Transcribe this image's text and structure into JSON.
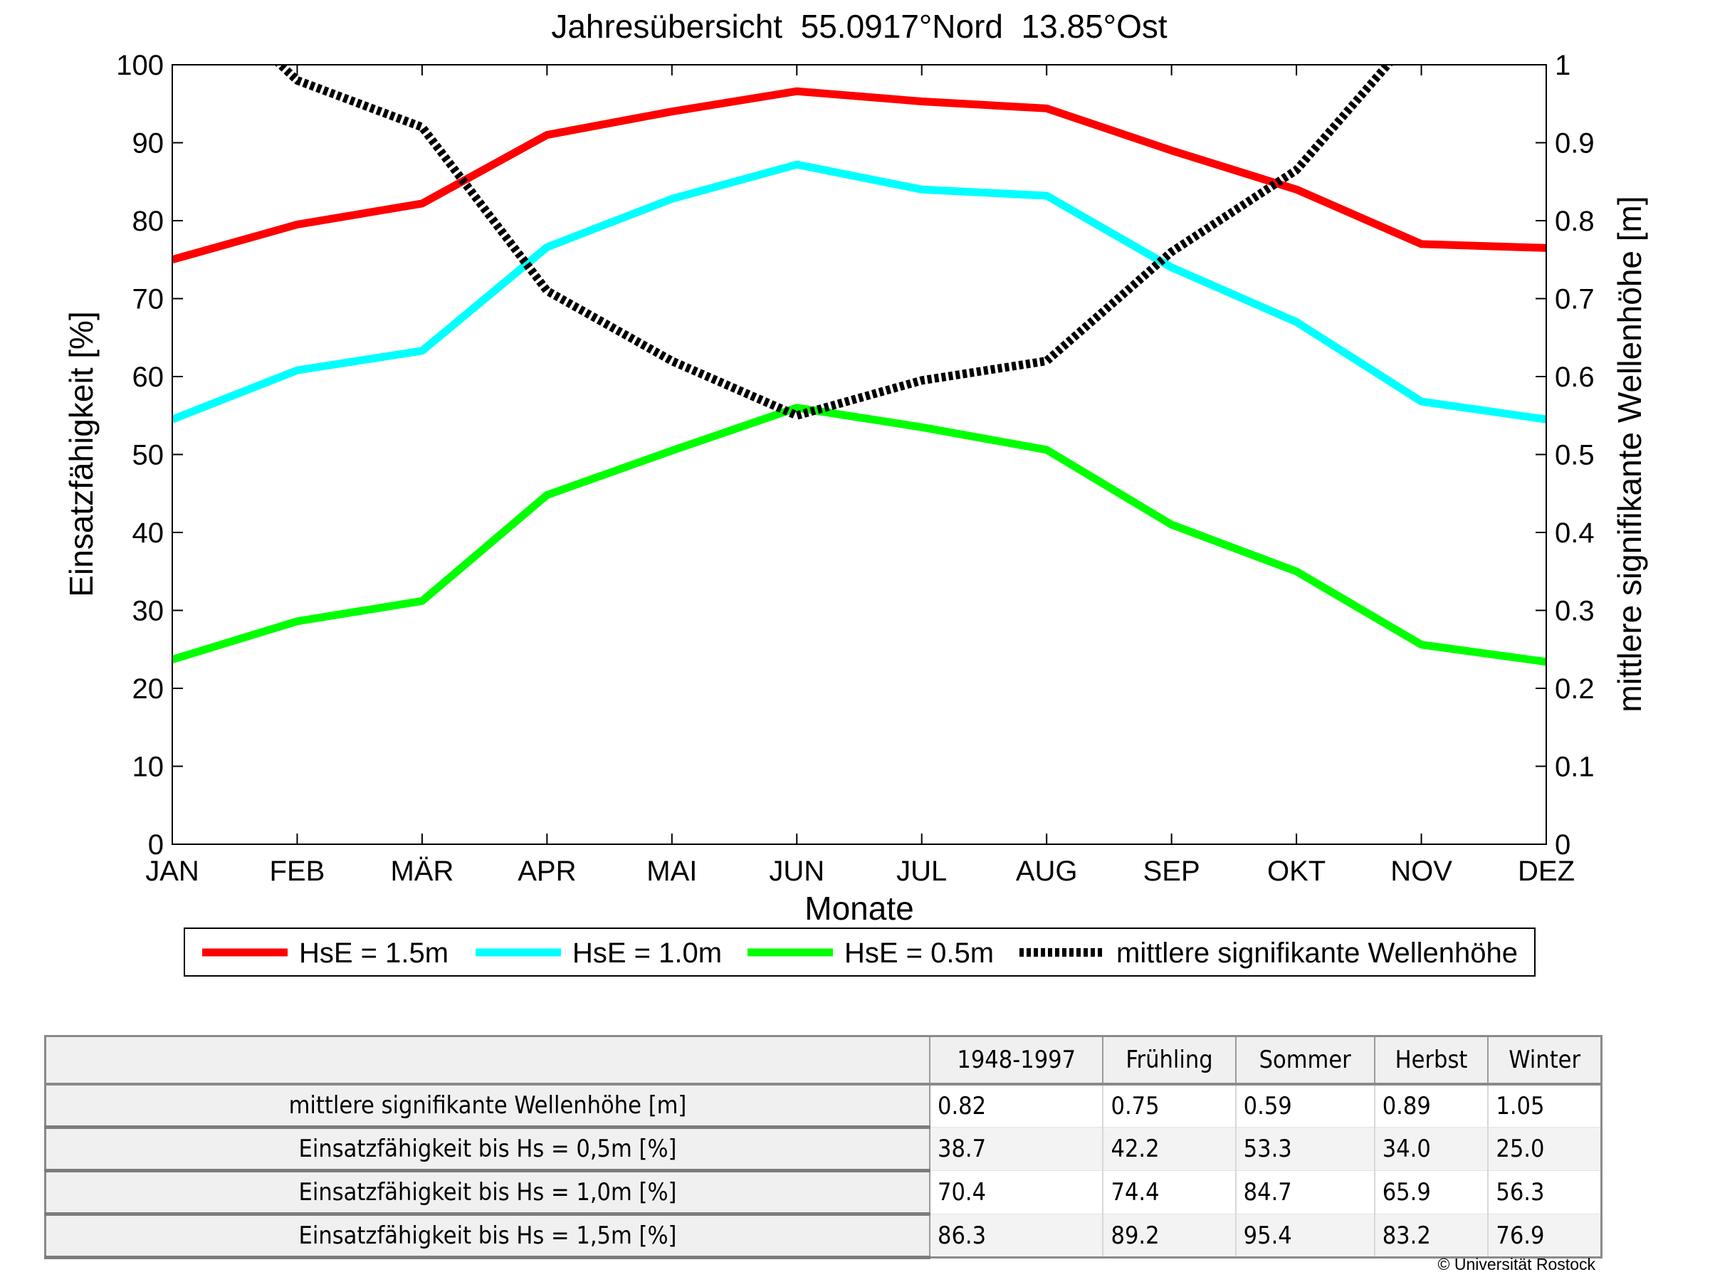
{
  "chart_data": {
    "type": "line",
    "title": "Jahresübersicht  55.0917°Nord  13.85°Ost",
    "xlabel": "Monate",
    "ylabel": "Einsatzfähigkeit [%]",
    "y2label": "mittlere signifikante Wellenhöhe [m]",
    "categories": [
      "JAN",
      "FEB",
      "MÄR",
      "APR",
      "MAI",
      "JUN",
      "JUL",
      "AUG",
      "SEP",
      "OKT",
      "NOV",
      "DEZ"
    ],
    "ylim": [
      0,
      100
    ],
    "y2lim": [
      0,
      1
    ],
    "yticks": [
      "0",
      "10",
      "20",
      "30",
      "40",
      "50",
      "60",
      "70",
      "80",
      "90",
      "100"
    ],
    "y2ticks": [
      "0",
      "0.1",
      "0.2",
      "0.3",
      "0.4",
      "0.5",
      "0.6",
      "0.7",
      "0.8",
      "0.9",
      "1"
    ],
    "grid": false,
    "legend_position": "bottom",
    "series": [
      {
        "name": "HsE = 1.5m",
        "axis": "left",
        "color": "#ff0000",
        "dashed": false,
        "values": [
          75,
          79.5,
          82.2,
          91,
          94,
          96.6,
          95.3,
          94.4,
          89,
          84,
          77,
          76.5
        ]
      },
      {
        "name": "HsE = 1.0m",
        "axis": "left",
        "color": "#00ffff",
        "dashed": false,
        "values": [
          54.5,
          60.8,
          63.3,
          76.6,
          82.8,
          87.2,
          84,
          83.2,
          74,
          67,
          56.8,
          54.5
        ]
      },
      {
        "name": "HsE = 0.5m",
        "axis": "left",
        "color": "#00ff00",
        "dashed": false,
        "values": [
          23.7,
          28.6,
          31.2,
          44.8,
          50.5,
          56,
          53.5,
          50.6,
          41,
          35,
          25.6,
          23.4
        ]
      },
      {
        "name": "mittlere signifikante Wellenhöhe",
        "axis": "right",
        "color": "#000000",
        "dashed": true,
        "values": [
          1.13,
          0.98,
          0.92,
          0.71,
          0.62,
          0.55,
          0.595,
          0.62,
          0.76,
          0.865,
          1.05,
          1.08
        ]
      }
    ]
  },
  "table": {
    "headers": [
      "",
      "1948-1997",
      "Frühling",
      "Sommer",
      "Herbst",
      "Winter"
    ],
    "rows": [
      {
        "label": "mittlere signifikante Wellenhöhe [m]",
        "values": [
          "0.82",
          "0.75",
          "0.59",
          "0.89",
          "1.05"
        ]
      },
      {
        "label": "Einsatzfähigkeit bis Hs = 0,5m [%]",
        "values": [
          "38.7",
          "42.2",
          "53.3",
          "34.0",
          "25.0"
        ]
      },
      {
        "label": "Einsatzfähigkeit bis Hs = 1,0m [%]",
        "values": [
          "70.4",
          "74.4",
          "84.7",
          "65.9",
          "56.3"
        ]
      },
      {
        "label": "Einsatzfähigkeit bis Hs = 1,5m [%]",
        "values": [
          "86.3",
          "89.2",
          "95.4",
          "83.2",
          "76.9"
        ]
      }
    ]
  },
  "copyright": "© Universität Rostock"
}
